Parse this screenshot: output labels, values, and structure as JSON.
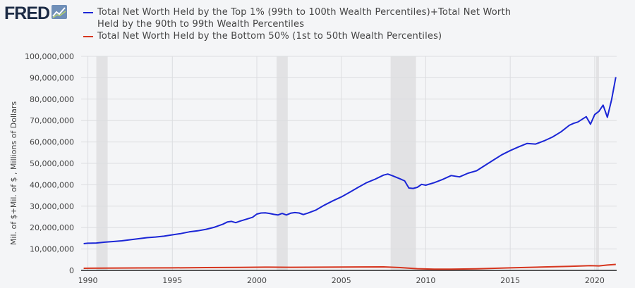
{
  "brand": {
    "name": "FRED",
    "icon": "fred-chart-logo-icon"
  },
  "chart_data": {
    "type": "line",
    "xlabel": "",
    "ylabel": "Mil. of $+Mil. of $ , Millions of Dollars",
    "xlim": [
      1989.6,
      2021.3
    ],
    "ylim": [
      0,
      100000000
    ],
    "x_ticks": [
      1990,
      1995,
      2000,
      2005,
      2010,
      2015,
      2020
    ],
    "x_tick_labels": [
      "1990",
      "1995",
      "2000",
      "2005",
      "2010",
      "2015",
      "2020"
    ],
    "y_ticks": [
      0,
      10000000,
      20000000,
      30000000,
      40000000,
      50000000,
      60000000,
      70000000,
      80000000,
      90000000,
      100000000
    ],
    "y_tick_labels": [
      "0",
      "10,000,000",
      "20,000,000",
      "30,000,000",
      "40,000,000",
      "50,000,000",
      "60,000,000",
      "70,000,000",
      "80,000,000",
      "90,000,000",
      "100,000,000"
    ],
    "grid": true,
    "legend_position": "top",
    "recessions": [
      {
        "start": 1990.5,
        "end": 1991.17
      },
      {
        "start": 2001.17,
        "end": 2001.83
      },
      {
        "start": 2007.92,
        "end": 2009.42
      },
      {
        "start": 2020.08,
        "end": 2020.25
      }
    ],
    "series": [
      {
        "name": "Total Net Worth Held by the Top 1% (99th to 100th Wealth Percentiles)+Total Net Worth Held by the 90th to 99th Wealth Percentiles",
        "color": "#1b26d6",
        "x": [
          1989.75,
          1990.0,
          1990.5,
          1991.0,
          1991.5,
          1992.0,
          1992.5,
          1993.0,
          1993.5,
          1994.0,
          1994.5,
          1995.0,
          1995.5,
          1996.0,
          1996.5,
          1997.0,
          1997.5,
          1998.0,
          1998.25,
          1998.5,
          1998.75,
          1999.0,
          1999.5,
          1999.75,
          2000.0,
          2000.25,
          2000.5,
          2000.75,
          2001.0,
          2001.25,
          2001.5,
          2001.75,
          2002.0,
          2002.25,
          2002.5,
          2002.75,
          2003.0,
          2003.5,
          2004.0,
          2004.5,
          2005.0,
          2005.5,
          2006.0,
          2006.5,
          2007.0,
          2007.5,
          2007.75,
          2008.0,
          2008.5,
          2008.75,
          2009.0,
          2009.25,
          2009.5,
          2009.75,
          2010.0,
          2010.5,
          2011.0,
          2011.5,
          2012.0,
          2012.5,
          2013.0,
          2013.5,
          2014.0,
          2014.5,
          2015.0,
          2015.5,
          2016.0,
          2016.5,
          2017.0,
          2017.5,
          2018.0,
          2018.5,
          2018.75,
          2019.0,
          2019.5,
          2019.75,
          2020.0,
          2020.25,
          2020.5,
          2020.75,
          2021.0,
          2021.25
        ],
        "values": [
          12500000,
          12700000,
          12800000,
          13200000,
          13500000,
          13800000,
          14300000,
          14800000,
          15300000,
          15600000,
          16000000,
          16600000,
          17200000,
          18000000,
          18500000,
          19200000,
          20200000,
          21600000,
          22600000,
          22900000,
          22300000,
          23000000,
          24200000,
          24800000,
          26300000,
          26800000,
          26900000,
          26600000,
          26200000,
          25900000,
          26600000,
          25900000,
          26700000,
          27000000,
          26800000,
          26100000,
          26700000,
          28200000,
          30500000,
          32500000,
          34300000,
          36500000,
          38800000,
          41000000,
          42600000,
          44500000,
          45000000,
          44300000,
          42700000,
          41800000,
          38500000,
          38300000,
          38800000,
          40200000,
          39800000,
          41000000,
          42500000,
          44300000,
          43700000,
          45400000,
          46500000,
          49000000,
          51500000,
          54000000,
          56000000,
          57700000,
          59300000,
          59000000,
          60500000,
          62300000,
          64700000,
          67800000,
          68700000,
          69300000,
          71800000,
          68300000,
          72800000,
          74300000,
          77200000,
          71500000,
          79700000,
          90300000
        ]
      },
      {
        "name": "Total Net Worth Held by the Bottom 50% (1st to 50th Wealth Percentiles)",
        "color": "#d6361f",
        "x": [
          1989.75,
          1991.0,
          1993.0,
          1995.0,
          1997.0,
          1999.0,
          2000.5,
          2002.0,
          2004.0,
          2006.0,
          2007.5,
          2008.5,
          2009.5,
          2010.5,
          2011.5,
          2013.0,
          2015.0,
          2017.0,
          2018.5,
          2019.75,
          2020.25,
          2020.75,
          2021.25
        ],
        "values": [
          1000000,
          1100000,
          1150000,
          1200000,
          1300000,
          1400000,
          1500000,
          1450000,
          1500000,
          1600000,
          1650000,
          1300000,
          800000,
          600000,
          550000,
          750000,
          1200000,
          1600000,
          1900000,
          2200000,
          2100000,
          2500000,
          2800000
        ]
      }
    ]
  }
}
